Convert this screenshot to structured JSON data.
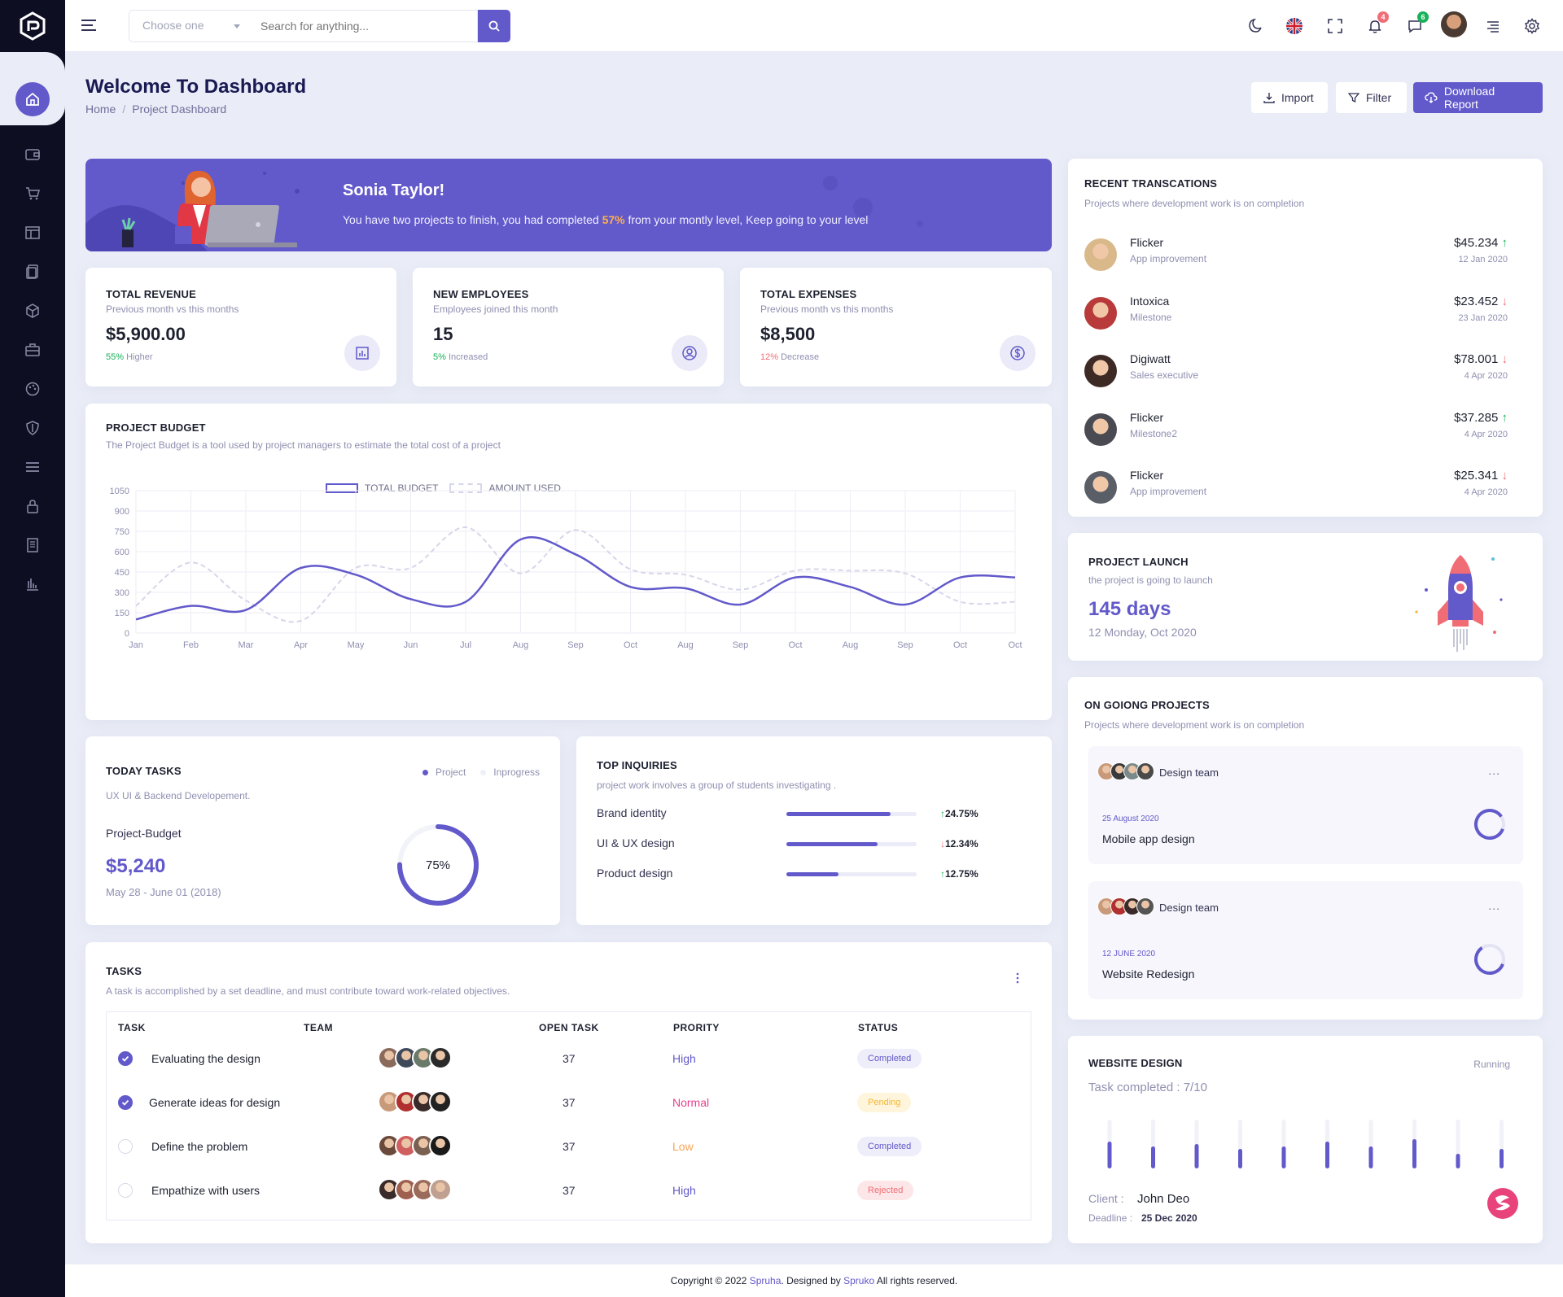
{
  "header": {
    "search_select": "Choose one",
    "search_placeholder": "Search for anything...",
    "notifications_count": "4",
    "messages_count": "6"
  },
  "page": {
    "title": "Welcome To Dashboard",
    "breadcrumb_home": "Home",
    "breadcrumb_separator": "/",
    "breadcrumb_current": "Project Dashboard",
    "btn_import": "Import",
    "btn_filter": "Filter",
    "btn_download": "Download Report"
  },
  "banner": {
    "name": "Sonia Taylor!",
    "text_before": "You have two projects to finish, you had completed ",
    "highlight": "57%",
    "text_after": " from your montly level, Keep going to your level"
  },
  "stats": [
    {
      "title": "TOTAL REVENUE",
      "sub": "Previous month vs this months",
      "value": "$5,900.00",
      "pct": "55%",
      "note": " Higher",
      "color": "#19b159",
      "icon": "bar-chart-icon"
    },
    {
      "title": "NEW EMPLOYEES",
      "sub": "Employees joined this month",
      "value": "15",
      "pct": "5%",
      "note": " Increased",
      "color": "#19b159",
      "icon": "user-circle-icon"
    },
    {
      "title": "TOTAL EXPENSES",
      "sub": "Previous month vs this months",
      "value": "$8,500",
      "pct": "12%",
      "note": " Decrease",
      "color": "#f16d75",
      "icon": "dollar-circle-icon"
    }
  ],
  "budget": {
    "title": "PROJECT BUDGET",
    "sub": "The Project Budget is a tool used by project managers to estimate the total cost of a project",
    "legend_total": "TOTAL BUDGET",
    "legend_used": "AMOUNT USED"
  },
  "chart_data": {
    "type": "line",
    "title": "PROJECT BUDGET",
    "x": [
      "Jan",
      "Feb",
      "Mar",
      "Apr",
      "May",
      "Jun",
      "Jul",
      "Aug",
      "Sep",
      "Oct",
      "Aug",
      "Sep",
      "Oct",
      "Aug",
      "Sep",
      "Oct",
      "Oct"
    ],
    "x_tick_labels": [
      "Jan",
      "Feb",
      "Mar",
      "Apr",
      "May",
      "Jun",
      "Jul",
      "Aug",
      "Sep",
      "Oct",
      "Aug",
      "Sep",
      "Oct",
      "Aug",
      "Sep",
      "Oct",
      "Oct"
    ],
    "y_ticks": [
      0,
      150,
      300,
      450,
      600,
      750,
      900,
      1050
    ],
    "ylim": [
      0,
      1050
    ],
    "grid": true,
    "legend": "top",
    "series": [
      {
        "name": "TOTAL BUDGET",
        "color": "#6259ca",
        "values": [
          100,
          200,
          170,
          480,
          430,
          250,
          230,
          690,
          580,
          340,
          330,
          210,
          410,
          340,
          210,
          410,
          410
        ]
      },
      {
        "name": "AMOUNT USED",
        "color": "#d6d6ea",
        "dashed": true,
        "values": [
          200,
          520,
          240,
          90,
          480,
          480,
          780,
          440,
          760,
          470,
          430,
          320,
          460,
          460,
          440,
          230,
          230
        ]
      }
    ]
  },
  "today_tasks": {
    "title": "TODAY TASKS",
    "sub": "UX UI & Backend Developement.",
    "legend_project": "Project",
    "legend_inprogress": "Inprogress",
    "label": "Project-Budget",
    "value": "$5,240",
    "range": "May 28 - June 01 (2018)",
    "percent_label": "75%",
    "percent": 0.75
  },
  "inquiries": {
    "title": "TOP INQUIRIES",
    "sub": "project work involves a group of students investigating .",
    "rows": [
      {
        "label": "Brand identity",
        "fill": 0.8,
        "pct": "24.75%",
        "dir": "up"
      },
      {
        "label": "UI & UX design",
        "fill": 0.7,
        "pct": "12.34%",
        "dir": "down"
      },
      {
        "label": "Product design",
        "fill": 0.4,
        "pct": "12.75%",
        "dir": "up"
      }
    ]
  },
  "tasks": {
    "title": "TASKS",
    "sub": "A task is accomplished by a set deadline, and must contribute toward work-related objectives.",
    "columns": [
      "TASK",
      "TEAM",
      "OPEN TASK",
      "PRORITY",
      "STATUS"
    ],
    "rows": [
      {
        "task": "Evaluating the design",
        "checked": true,
        "open": "37",
        "priority": "High",
        "priority_color": "#6259ca",
        "status": "Completed",
        "status_bg": "#eeedfa",
        "status_color": "#6259ca"
      },
      {
        "task": "Generate ideas for design",
        "checked": true,
        "open": "37",
        "priority": "Normal",
        "priority_color": "#e83e8c",
        "status": "Pending",
        "status_bg": "#fff5dc",
        "status_color": "#f7b731"
      },
      {
        "task": "Define the problem",
        "checked": false,
        "open": "37",
        "priority": "Low",
        "priority_color": "#f7a556",
        "status": "Completed",
        "status_bg": "#eeedfa",
        "status_color": "#6259ca"
      },
      {
        "task": "Empathize with users",
        "checked": false,
        "open": "37",
        "priority": "High",
        "priority_color": "#6259ca",
        "status": "Rejected",
        "status_bg": "#fde6e8",
        "status_color": "#f16d75"
      }
    ]
  },
  "transactions": {
    "title": "RECENT TRANSCATIONS",
    "sub": "Projects where development work is on completion",
    "rows": [
      {
        "name": "Flicker",
        "sub": "App improvement",
        "amount": "$45.234",
        "date": "12 Jan 2020",
        "dir": "up",
        "avatar": "#d9b98a"
      },
      {
        "name": "Intoxica",
        "sub": "Milestone",
        "amount": "$23.452",
        "date": "23 Jan 2020",
        "dir": "down",
        "avatar": "#b83a3a"
      },
      {
        "name": "Digiwatt",
        "sub": "Sales executive",
        "amount": "$78.001",
        "date": "4 Apr 2020",
        "dir": "down",
        "avatar": "#3d2a25"
      },
      {
        "name": "Flicker",
        "sub": "Milestone2",
        "amount": "$37.285",
        "date": "4 Apr 2020",
        "dir": "up",
        "avatar": "#4a4a52"
      },
      {
        "name": "Flicker",
        "sub": "App improvement",
        "amount": "$25.341",
        "date": "4 Apr 2020",
        "dir": "down",
        "avatar": "#5a5e66"
      }
    ]
  },
  "launch": {
    "title": "PROJECT LAUNCH",
    "sub": "the project is going to launch",
    "days": "145 days",
    "date": "12 Monday, Oct 2020"
  },
  "ongoing": {
    "title": "ON GOIONG PROJECTS",
    "sub": "Projects where development work is on completion",
    "projects": [
      {
        "team": "Design team",
        "more": "...",
        "date": "25 August 2020",
        "name": "Mobile app design",
        "progress": 0.85
      },
      {
        "team": "Design team",
        "more": "...",
        "date": "12 JUNE 2020",
        "name": "Website Redesign",
        "progress": 0.6
      }
    ]
  },
  "website": {
    "title": "WEBSITE DESIGN",
    "status": "Running",
    "completed": "Task completed : 7/10",
    "client_label": "Client :",
    "client": "John Deo",
    "deadline_label": "Deadline :",
    "deadline": "25 Dec 2020",
    "bars": [
      0.55,
      0.45,
      0.5,
      0.4,
      0.45,
      0.55,
      0.45,
      0.6,
      0.3,
      0.4
    ]
  },
  "footer": {
    "text1": "Copyright © 2022 ",
    "brand": "Spruha",
    "text2": ". Designed by ",
    "author": "Spruko",
    "text3": " All rights reserved."
  }
}
